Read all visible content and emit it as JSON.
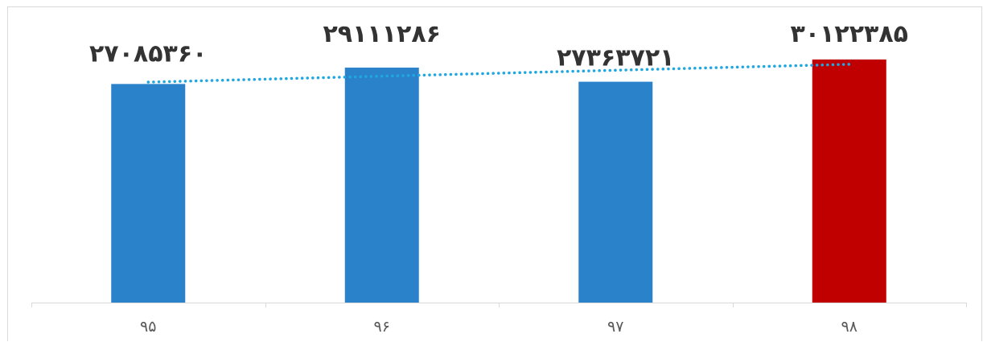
{
  "chart_data": {
    "type": "bar",
    "title": "",
    "xlabel": "",
    "ylabel": "",
    "categories": [
      "۹۵",
      "۹۶",
      "۹۷",
      "۹۸"
    ],
    "values": [
      27085360,
      29111286,
      27363721,
      30122385
    ],
    "data_labels": [
      "۲۷۰۸۵۳۶۰",
      "۲۹۱۱۱۲۸۶",
      "۲۷۳۶۳۷۲۱",
      "۳۰۱۲۲۳۸۵"
    ],
    "bar_colors": [
      "#2a82ca",
      "#2a82ca",
      "#2a82ca",
      "#c00000"
    ],
    "trendline": {
      "type": "linear",
      "style": "dotted",
      "color": "#1fa7e0"
    },
    "ylim": [
      0,
      34500000
    ],
    "axis_color": "#d9d9d9",
    "grid": false,
    "legend": "none"
  }
}
